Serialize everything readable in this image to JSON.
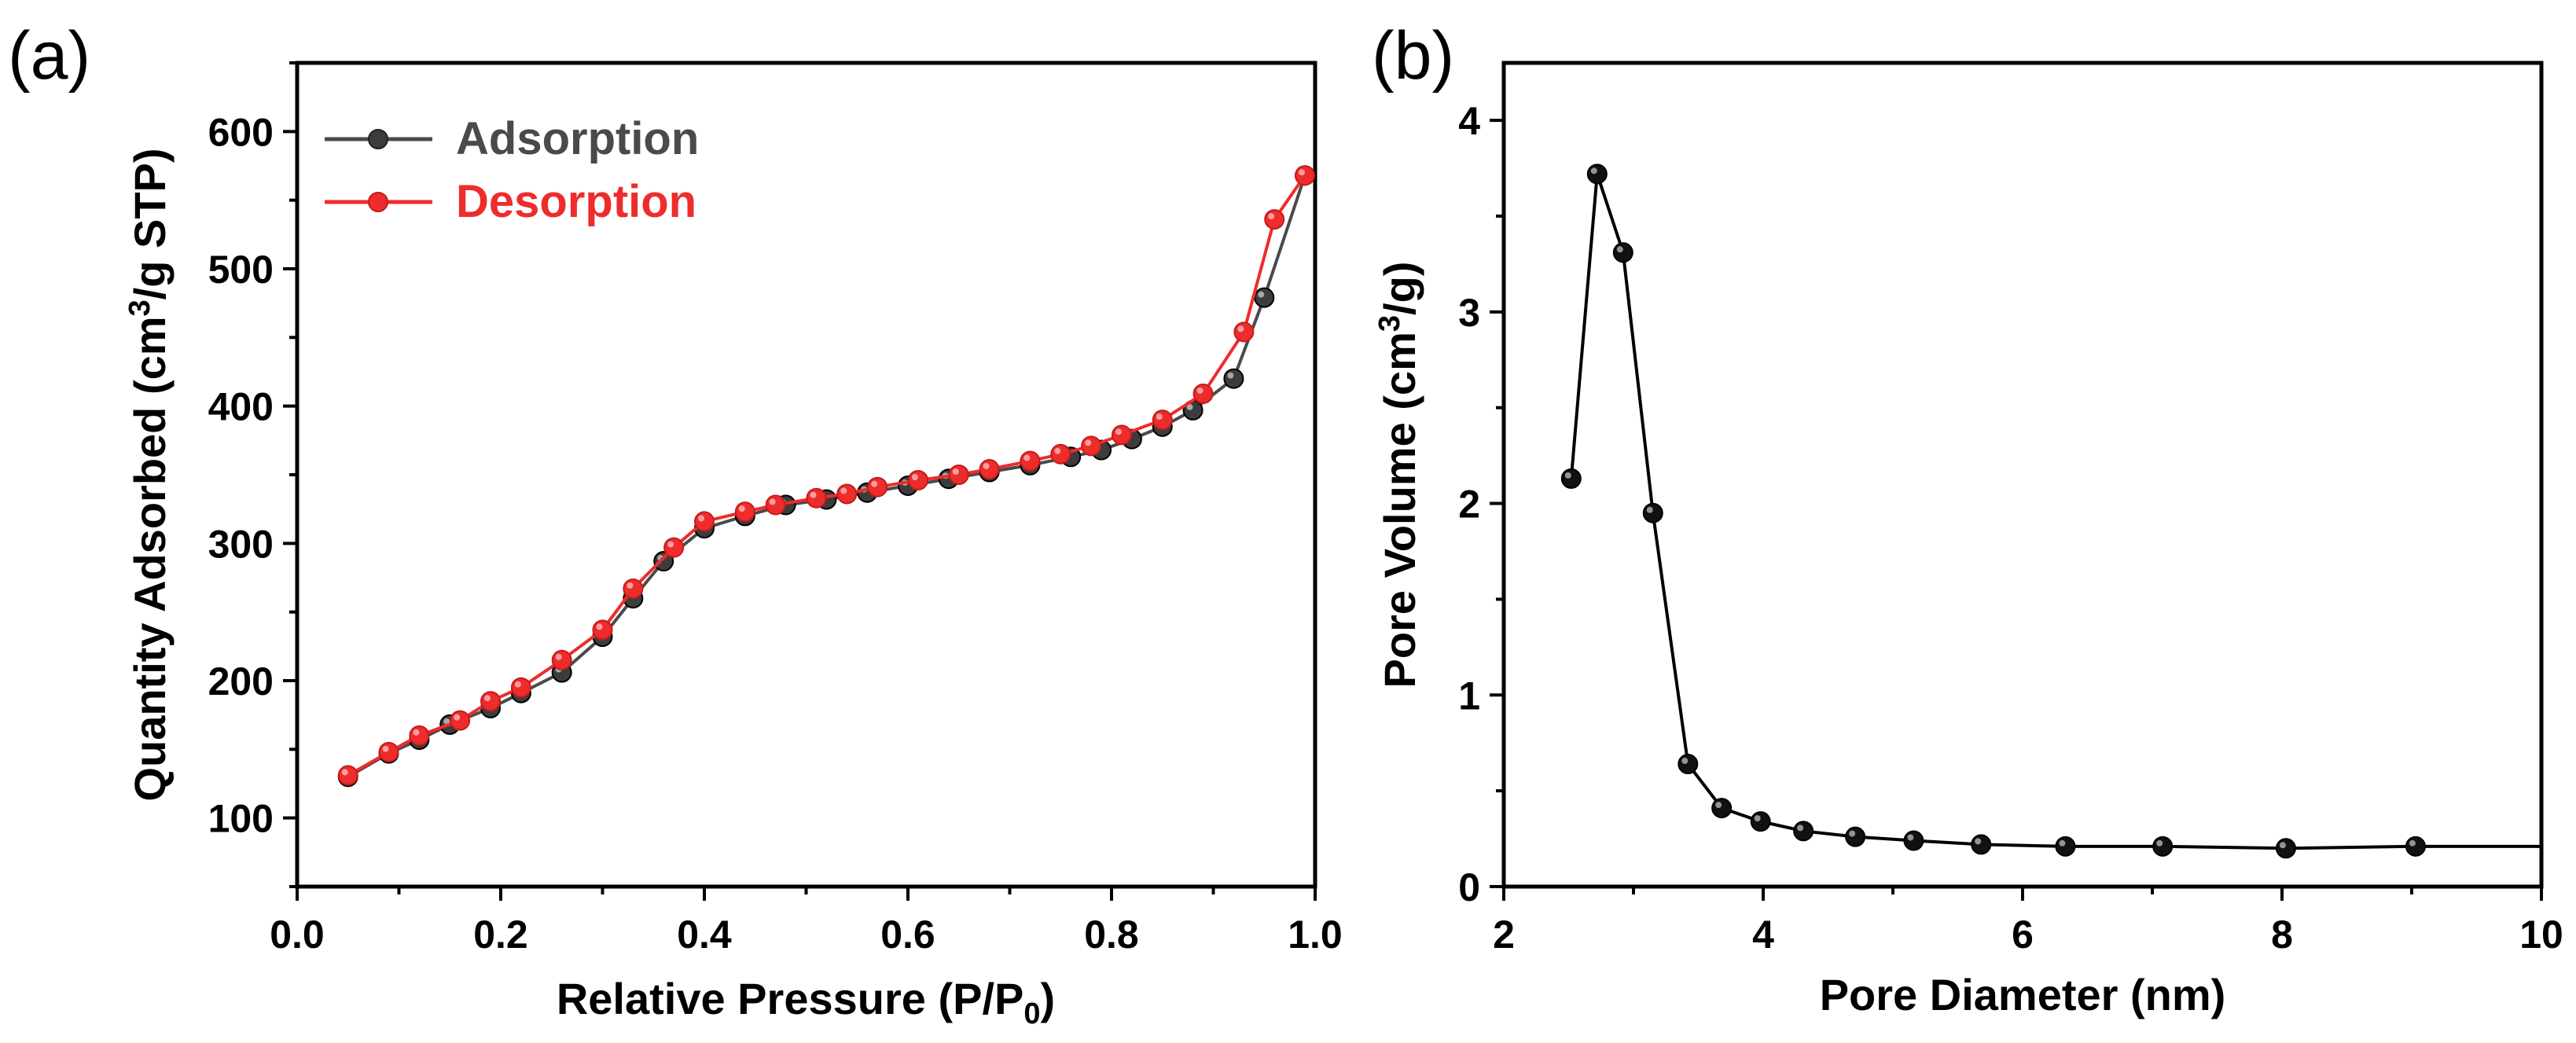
{
  "chart_data": [
    {
      "type": "line",
      "panel_label": "(a)",
      "xlabel": "Relative Pressure (P/P0)",
      "xlabel_main": "Relative Pressure (P/P",
      "xlabel_sub": "0",
      "xlabel_end": ")",
      "ylabel": "Quantity Adsorbed (cm3/g STP)",
      "ylabel_main": "Quantity Adsorbed (cm",
      "ylabel_sup": "3",
      "ylabel_end": "/g STP)",
      "xlim": [
        0.0,
        1.0
      ],
      "ylim": [
        50,
        650
      ],
      "xticks": [
        "0.0",
        "0.2",
        "0.4",
        "0.6",
        "0.8",
        "1.0"
      ],
      "yticks": [
        "100",
        "200",
        "300",
        "400",
        "500",
        "600"
      ],
      "legend_position": "top-left",
      "series": [
        {
          "name": "Adsorption",
          "color": "#4a4a4a",
          "x": [
            0.05,
            0.09,
            0.12,
            0.15,
            0.19,
            0.22,
            0.26,
            0.3,
            0.33,
            0.36,
            0.4,
            0.44,
            0.48,
            0.52,
            0.56,
            0.6,
            0.64,
            0.68,
            0.72,
            0.76,
            0.79,
            0.82,
            0.85,
            0.88,
            0.92,
            0.95,
            0.99
          ],
          "y": [
            130,
            147,
            157,
            168,
            180,
            191,
            206,
            232,
            260,
            287,
            311,
            320,
            328,
            332,
            337,
            342,
            347,
            352,
            357,
            363,
            368,
            376,
            385,
            397,
            420,
            479,
            568
          ]
        },
        {
          "name": "Desorption",
          "color": "#ee2c2c",
          "x": [
            0.05,
            0.09,
            0.12,
            0.16,
            0.19,
            0.22,
            0.26,
            0.3,
            0.33,
            0.37,
            0.4,
            0.44,
            0.47,
            0.51,
            0.54,
            0.57,
            0.61,
            0.65,
            0.68,
            0.72,
            0.75,
            0.78,
            0.81,
            0.85,
            0.89,
            0.93,
            0.96,
            0.99
          ],
          "y": [
            131,
            148,
            160,
            171,
            185,
            195,
            215,
            237,
            267,
            297,
            316,
            323,
            328,
            333,
            336,
            341,
            346,
            350,
            354,
            360,
            365,
            371,
            379,
            390,
            409,
            454,
            536,
            568
          ]
        }
      ]
    },
    {
      "type": "line",
      "panel_label": "(b)",
      "xlabel": "Pore Diameter (nm)",
      "ylabel": "Pore Volume (cm3/g)",
      "ylabel_main": "Pore Volume (cm",
      "ylabel_sup": "3",
      "ylabel_end": "/g)",
      "xlim": [
        2,
        10
      ],
      "ylim": [
        0,
        4.3
      ],
      "xticks": [
        "2",
        "4",
        "6",
        "8",
        "10"
      ],
      "yticks": [
        "0",
        "1",
        "2",
        "3",
        "4"
      ],
      "series": [
        {
          "name": "Pore Volume",
          "color": "#000000",
          "x": [
            2.52,
            2.72,
            2.92,
            3.15,
            3.42,
            3.68,
            3.98,
            4.31,
            4.71,
            5.16,
            5.68,
            6.33,
            7.08,
            8.03,
            9.03
          ],
          "y": [
            2.13,
            3.72,
            3.31,
            1.95,
            0.64,
            0.41,
            0.34,
            0.29,
            0.26,
            0.24,
            0.22,
            0.21,
            0.21,
            0.2,
            0.21
          ],
          "line_end_x": 10,
          "line_end_y": 0.21
        }
      ]
    }
  ]
}
